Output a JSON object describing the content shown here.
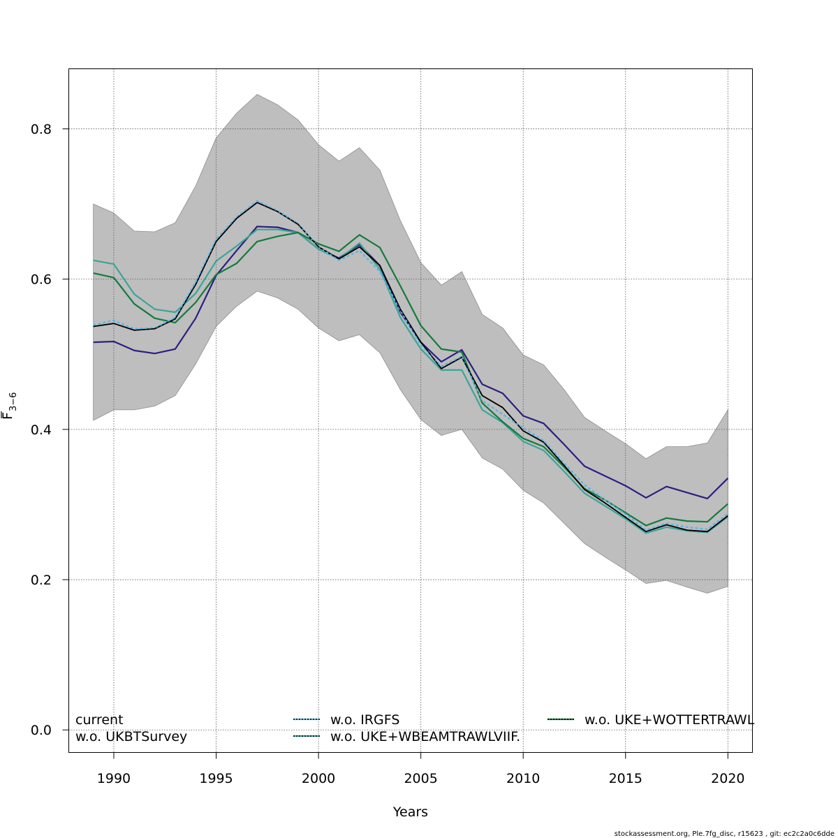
{
  "chart_data": {
    "type": "line",
    "xlabel": "Years",
    "ylabel": "F",
    "ylabel_sub": "3−6",
    "xlim": [
      1987.8,
      2021.2
    ],
    "ylim": [
      -0.03,
      0.88
    ],
    "x_ticks": [
      1990,
      1995,
      2000,
      2005,
      2010,
      2015,
      2020
    ],
    "y_ticks": [
      0.0,
      0.2,
      0.4,
      0.6,
      0.8
    ],
    "y_tick_labels": [
      "0.0",
      "0.2",
      "0.4",
      "0.6",
      "0.8"
    ],
    "grid": true,
    "legend_position": "bottom",
    "x": [
      1989,
      1990,
      1991,
      1992,
      1993,
      1994,
      1995,
      1996,
      1997,
      1998,
      1999,
      2000,
      2001,
      2002,
      2003,
      2004,
      2005,
      2006,
      2007,
      2008,
      2009,
      2010,
      2011,
      2012,
      2013,
      2014,
      2015,
      2016,
      2017,
      2018,
      2019,
      2020
    ],
    "band": {
      "color": "#bebebe",
      "lower": [
        0.412,
        0.426,
        0.426,
        0.431,
        0.445,
        0.487,
        0.537,
        0.564,
        0.584,
        0.575,
        0.56,
        0.535,
        0.518,
        0.526,
        0.502,
        0.453,
        0.413,
        0.392,
        0.4,
        0.362,
        0.347,
        0.319,
        0.302,
        0.275,
        0.248,
        0.23,
        0.213,
        0.195,
        0.199,
        0.19,
        0.182,
        0.191
      ],
      "upper": [
        0.7,
        0.688,
        0.664,
        0.663,
        0.675,
        0.724,
        0.788,
        0.821,
        0.846,
        0.832,
        0.812,
        0.779,
        0.757,
        0.775,
        0.745,
        0.678,
        0.622,
        0.592,
        0.61,
        0.553,
        0.535,
        0.499,
        0.486,
        0.453,
        0.416,
        0.398,
        0.381,
        0.361,
        0.377,
        0.377,
        0.382,
        0.426
      ]
    },
    "series": [
      {
        "name": "current",
        "color": "#000000",
        "dash": "none",
        "width": 1.8,
        "values": [
          0.537,
          0.541,
          0.532,
          0.534,
          0.547,
          0.593,
          0.65,
          0.681,
          0.702,
          0.69,
          0.673,
          0.643,
          0.627,
          0.643,
          0.618,
          0.56,
          0.516,
          0.481,
          0.496,
          0.445,
          0.429,
          0.398,
          0.383,
          0.352,
          0.32,
          0.302,
          0.283,
          0.264,
          0.273,
          0.266,
          0.264,
          0.285
        ]
      },
      {
        "name": "w.o. UKBTSurvey",
        "color": "#2b1f80",
        "dash": "none",
        "width": 2.2,
        "values": [
          0.516,
          0.517,
          0.505,
          0.501,
          0.507,
          0.548,
          0.605,
          0.638,
          0.67,
          0.669,
          0.662,
          0.64,
          0.628,
          0.646,
          0.618,
          0.556,
          0.516,
          0.49,
          0.506,
          0.46,
          0.448,
          0.418,
          0.408,
          0.38,
          0.351,
          0.338,
          0.325,
          0.309,
          0.324,
          0.316,
          0.308,
          0.335
        ]
      },
      {
        "name": "w.o. IRGFS",
        "color": "#56b4e9",
        "dash": "4 3",
        "width": 2.2,
        "values": [
          0.539,
          0.545,
          0.534,
          0.535,
          0.549,
          0.596,
          0.653,
          0.683,
          0.704,
          0.691,
          0.674,
          0.643,
          0.625,
          0.638,
          0.61,
          0.558,
          0.512,
          0.484,
          0.497,
          0.438,
          0.42,
          0.402,
          0.385,
          0.355,
          0.326,
          0.306,
          0.287,
          0.266,
          0.275,
          0.27,
          0.267,
          0.288
        ]
      },
      {
        "name": "w.o. UKE+WBEAMTRAWLVIIF.",
        "color": "#3ba596",
        "dash": "none",
        "width": 2.2,
        "values": [
          0.625,
          0.62,
          0.58,
          0.56,
          0.556,
          0.581,
          0.624,
          0.644,
          0.666,
          0.666,
          0.662,
          0.64,
          0.627,
          0.648,
          0.613,
          0.549,
          0.507,
          0.479,
          0.479,
          0.426,
          0.409,
          0.384,
          0.372,
          0.344,
          0.315,
          0.298,
          0.281,
          0.262,
          0.27,
          0.265,
          0.263,
          0.284
        ]
      },
      {
        "name": "w.o. UKE+WOTTERTRAWL",
        "color": "#137a3c",
        "dash": "none",
        "width": 2.2,
        "values": [
          0.608,
          0.602,
          0.567,
          0.548,
          0.542,
          0.569,
          0.606,
          0.621,
          0.65,
          0.657,
          0.662,
          0.647,
          0.637,
          0.659,
          0.642,
          0.591,
          0.538,
          0.507,
          0.503,
          0.435,
          0.41,
          0.388,
          0.377,
          0.35,
          0.321,
          0.306,
          0.289,
          0.272,
          0.282,
          0.278,
          0.277,
          0.301
        ]
      }
    ]
  },
  "footer_text": "stockassessment.org, Ple.7fg_disc, r15623 , git: ec2c2a0c6dde"
}
